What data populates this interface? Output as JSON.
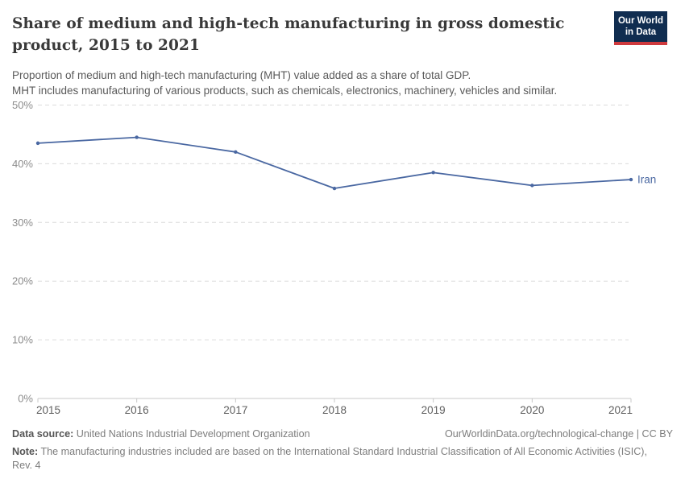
{
  "header": {
    "title": "Share of medium and high-tech manufacturing in gross domestic product, 2015 to 2021",
    "subtitle_line1": "Proportion of medium and high-tech manufacturing (MHT) value added as a share of total GDP.",
    "subtitle_line2": "MHT includes manufacturing of various products, such as chemicals, electronics, machinery, vehicles and similar."
  },
  "logo": {
    "line1": "Our World",
    "line2": "in Data",
    "bg_color": "#102d50",
    "stripe_color": "#cf3a3e"
  },
  "chart_data": {
    "type": "line",
    "title": "Share of medium and high-tech manufacturing in gross domestic product, 2015 to 2021",
    "x": [
      2015,
      2016,
      2017,
      2018,
      2019,
      2020,
      2021
    ],
    "series": [
      {
        "name": "Iran",
        "color": "#4a68a2",
        "values": [
          43.5,
          44.5,
          42.0,
          35.8,
          38.5,
          36.3,
          37.3
        ]
      }
    ],
    "yticks": [
      0,
      10,
      20,
      30,
      40,
      50
    ],
    "ylim": [
      0,
      50
    ],
    "y_format": "percent",
    "grid": "horizontal-dashed",
    "legend": "end-of-line-label"
  },
  "footer": {
    "source_label": "Data source:",
    "source_text": " United Nations Industrial Development Organization",
    "link_text": "OurWorldinData.org/technological-change | CC BY",
    "note_label": "Note:",
    "note_text": " The manufacturing industries included are based on the International Standard Industrial Classification of All Economic Activities (ISIC), Rev. 4"
  }
}
